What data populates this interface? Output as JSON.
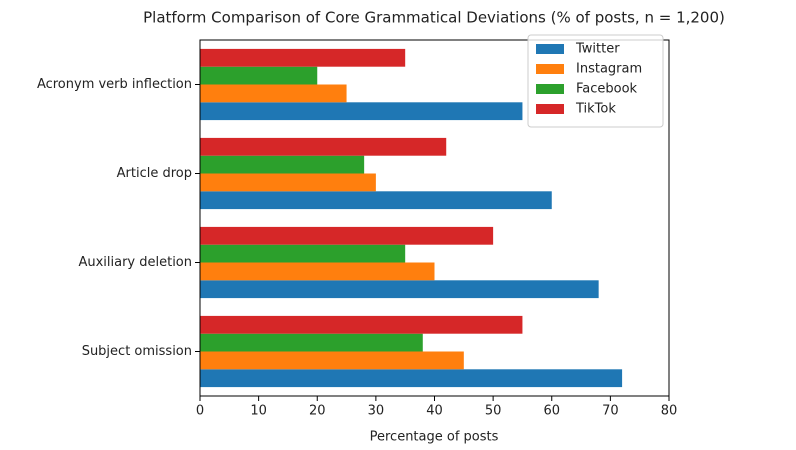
{
  "chart_data": {
    "type": "barh",
    "title": "Platform Comparison of Core Grammatical Deviations (% of posts, n = 1,200)",
    "x_label": "Percentage of posts",
    "categories": [
      "Subject omission",
      "Auxiliary deletion",
      "Article drop",
      "Acronym verb inflection"
    ],
    "series": [
      {
        "name": "Twitter",
        "color": "#1f77b4",
        "values": [
          72,
          68,
          60,
          55
        ]
      },
      {
        "name": "Instagram",
        "color": "#ff7f0e",
        "values": [
          45,
          40,
          30,
          25
        ]
      },
      {
        "name": "Facebook",
        "color": "#2ca02c",
        "values": [
          38,
          35,
          28,
          20
        ]
      },
      {
        "name": "TikTok",
        "color": "#d62728",
        "values": [
          55,
          50,
          42,
          35
        ]
      }
    ],
    "xlim": [
      0,
      80
    ],
    "xticks": [
      0,
      10,
      20,
      30,
      40,
      50,
      60,
      70,
      80
    ],
    "legend": "upper right"
  }
}
